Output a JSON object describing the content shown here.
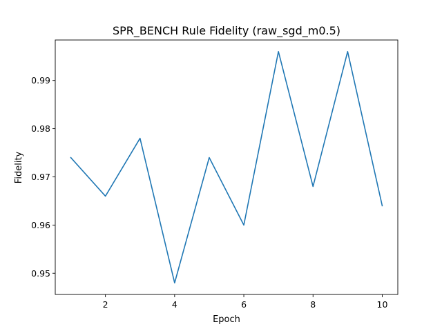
{
  "chart_data": {
    "type": "line",
    "title": "SPR_BENCH Rule Fidelity (raw_sgd_m0.5)",
    "xlabel": "Epoch",
    "ylabel": "Fidelity",
    "x": [
      1,
      2,
      3,
      4,
      5,
      6,
      7,
      8,
      9,
      10
    ],
    "series": [
      {
        "values": [
          0.974,
          0.966,
          0.978,
          0.948,
          0.974,
          0.96,
          0.996,
          0.968,
          0.996,
          0.964
        ],
        "color": "#1f77b4"
      }
    ],
    "xlim": [
      0.55,
      10.45
    ],
    "ylim": [
      0.9456,
      0.9984
    ],
    "xticks": [
      2,
      4,
      6,
      8,
      10
    ],
    "xtick_labels": [
      "2",
      "4",
      "6",
      "8",
      "10"
    ],
    "yticks": [
      0.95,
      0.96,
      0.97,
      0.98,
      0.99
    ],
    "ytick_labels": [
      "0.95",
      "0.96",
      "0.97",
      "0.98",
      "0.99"
    ],
    "grid": false,
    "legend": "none"
  }
}
